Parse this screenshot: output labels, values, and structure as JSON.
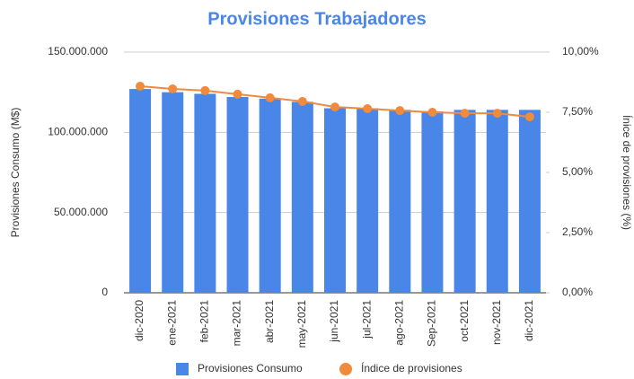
{
  "chart_data": {
    "type": "combo",
    "title": "Provisiones Trabajadores",
    "y_label": "Provisiones Consumo (M$)",
    "y2_label": "Ínice de provisiones (%)",
    "categories": [
      "dic-2020",
      "ene-2021",
      "feb-2021",
      "mar-2021",
      "abr-2021",
      "may-2021",
      "jun-2021",
      "jul-2021",
      "ago-2021",
      "Sep-2021",
      "oct-2021",
      "nov-2021",
      "dic-2021"
    ],
    "series": [
      {
        "name": "Provisiones Consumo",
        "type": "bar",
        "color": "#4a86e8",
        "values": [
          127000000,
          125000000,
          124000000,
          122000000,
          121000000,
          119000000,
          115000000,
          115000000,
          114000000,
          113000000,
          114000000,
          114000000,
          114000000
        ]
      },
      {
        "name": "Índice de provisiones",
        "type": "line",
        "axis": "y2",
        "color": "#f08a3c",
        "values": [
          8.58,
          8.47,
          8.4,
          8.25,
          8.1,
          7.95,
          7.72,
          7.65,
          7.57,
          7.5,
          7.46,
          7.46,
          7.31
        ]
      }
    ],
    "ylim": [
      0,
      150000000
    ],
    "yticks": [
      0,
      {
        "value": 50000000,
        "label": "50.000.000"
      },
      {
        "value": 100000000,
        "label": "100.000.000"
      },
      {
        "value": 150000000,
        "label": "150.000.000"
      }
    ],
    "y2lim": [
      0,
      10
    ],
    "y2ticks": [
      {
        "value": 0,
        "label": "0,00%"
      },
      {
        "value": 2.5,
        "label": "2,50%"
      },
      {
        "value": 5,
        "label": "5,00%"
      },
      {
        "value": 7.5,
        "label": "7,50%"
      },
      {
        "value": 10,
        "label": "10,00%"
      }
    ],
    "grid": true,
    "legend": "bottom"
  }
}
